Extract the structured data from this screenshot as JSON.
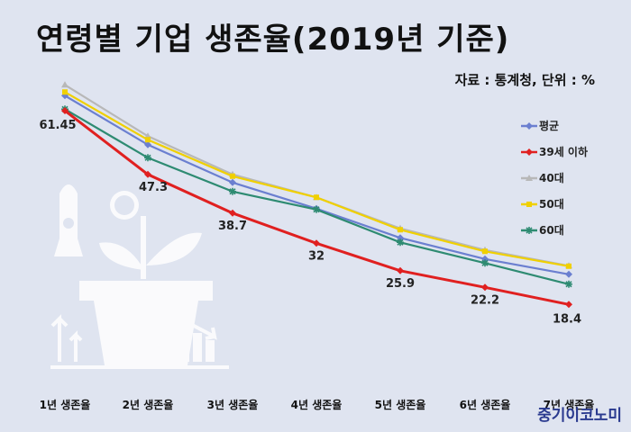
{
  "title": "연령별 기업 생존율(2019년 기준)",
  "source": "자료 : 통계청, 단위 : %",
  "brand": "중기이코노미",
  "chart_data": {
    "type": "line",
    "categories": [
      "1년 생존율",
      "2년 생존율",
      "3년 생존율",
      "4년 생존율",
      "5년 생존율",
      "6년 생존율",
      "7년 생존율"
    ],
    "series": [
      {
        "name": "평균",
        "color": "#6b7fd0",
        "marker": "diamond",
        "values": [
          64.8,
          53.9,
          45.5,
          39.7,
          33.2,
          28.5,
          25.1
        ]
      },
      {
        "name": "39세 이하",
        "color": "#e02020",
        "marker": "diamond",
        "values": [
          61.45,
          47.3,
          38.7,
          32,
          25.9,
          22.2,
          18.4
        ]
      },
      {
        "name": "40대",
        "color": "#b8b8b8",
        "marker": "triangle",
        "values": [
          67.2,
          55.8,
          47.3,
          42.2,
          35.3,
          30.5,
          27.0
        ]
      },
      {
        "name": "50대",
        "color": "#f0d000",
        "marker": "square",
        "values": [
          65.6,
          55.0,
          46.9,
          42.2,
          35.0,
          30.2,
          26.9
        ]
      },
      {
        "name": "60대",
        "color": "#2e8b72",
        "marker": "star",
        "values": [
          61.8,
          51.0,
          43.5,
          39.5,
          32.2,
          27.6,
          22.9
        ]
      }
    ],
    "data_labels_series": "39세 이하",
    "data_labels": [
      "61.45",
      "47.3",
      "38.7",
      "32",
      "25.9",
      "22.2",
      "18.4"
    ],
    "legend_position": "right",
    "grid": false
  }
}
